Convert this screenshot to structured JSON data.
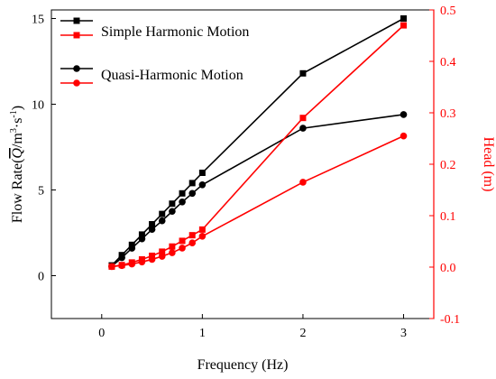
{
  "chart_data": {
    "type": "line",
    "xlabel": "Frequency (Hz)",
    "ylabel_left": {
      "prefix": "Flow Rate(",
      "symbol": "Q",
      "suffix": "/m",
      "sup3": "3",
      "mid": "·s",
      "supm1": "-1",
      "close": ")"
    },
    "ylabel_right": "Head (m)",
    "x_range": [
      -0.5,
      3.3
    ],
    "y_left_range": [
      -2.5,
      15.5
    ],
    "y_right_range": [
      -0.1,
      0.5
    ],
    "x_ticks": [
      {
        "value": 0,
        "label": "0"
      },
      {
        "value": 1,
        "label": "1"
      },
      {
        "value": 2,
        "label": "2"
      },
      {
        "value": 3,
        "label": "3"
      }
    ],
    "y_left_ticks": [
      {
        "value": 0,
        "label": "0"
      },
      {
        "value": 5,
        "label": "5"
      },
      {
        "value": 10,
        "label": "10"
      },
      {
        "value": 15,
        "label": "15"
      }
    ],
    "y_right_ticks": [
      {
        "value": -0.1,
        "label": "-0.1"
      },
      {
        "value": 0.0,
        "label": "0.0"
      },
      {
        "value": 0.1,
        "label": "0.1"
      },
      {
        "value": 0.2,
        "label": "0.2"
      },
      {
        "value": 0.3,
        "label": "0.3"
      },
      {
        "value": 0.4,
        "label": "0.4"
      },
      {
        "value": 0.5,
        "label": "0.5"
      }
    ],
    "colors": {
      "left": "#000000",
      "right": "#ff0000"
    },
    "legend_position": "top-left",
    "legend": [
      {
        "label": "Simple Harmonic Motion",
        "marker": "square"
      },
      {
        "label": "Quasi-Harmonic Motion",
        "marker": "circle"
      }
    ],
    "series": [
      {
        "axis": "left",
        "marker": "square",
        "color": "#000000",
        "x": [
          0.1,
          0.2,
          0.3,
          0.4,
          0.5,
          0.6,
          0.7,
          0.8,
          0.9,
          1.0,
          2.0,
          3.0
        ],
        "y": [
          0.6,
          1.2,
          1.8,
          2.4,
          3.0,
          3.6,
          4.2,
          4.8,
          5.4,
          6.0,
          11.8,
          15.0
        ]
      },
      {
        "axis": "left",
        "marker": "circle",
        "color": "#000000",
        "x": [
          0.1,
          0.2,
          0.3,
          0.4,
          0.5,
          0.6,
          0.7,
          0.8,
          0.9,
          1.0,
          2.0,
          3.0
        ],
        "y": [
          0.55,
          1.05,
          1.6,
          2.15,
          2.7,
          3.2,
          3.75,
          4.3,
          4.8,
          5.3,
          8.6,
          9.4
        ]
      },
      {
        "axis": "right",
        "marker": "square",
        "color": "#ff0000",
        "x": [
          0.1,
          0.2,
          0.3,
          0.4,
          0.5,
          0.6,
          0.7,
          0.8,
          0.9,
          1.0,
          2.0,
          3.0
        ],
        "y": [
          0.001,
          0.004,
          0.009,
          0.015,
          0.022,
          0.03,
          0.04,
          0.051,
          0.062,
          0.073,
          0.29,
          0.47
        ]
      },
      {
        "axis": "right",
        "marker": "circle",
        "color": "#ff0000",
        "x": [
          0.1,
          0.2,
          0.3,
          0.4,
          0.5,
          0.6,
          0.7,
          0.8,
          0.9,
          1.0,
          2.0,
          3.0
        ],
        "y": [
          0.001,
          0.003,
          0.006,
          0.01,
          0.015,
          0.021,
          0.028,
          0.037,
          0.047,
          0.06,
          0.165,
          0.255
        ]
      }
    ]
  }
}
